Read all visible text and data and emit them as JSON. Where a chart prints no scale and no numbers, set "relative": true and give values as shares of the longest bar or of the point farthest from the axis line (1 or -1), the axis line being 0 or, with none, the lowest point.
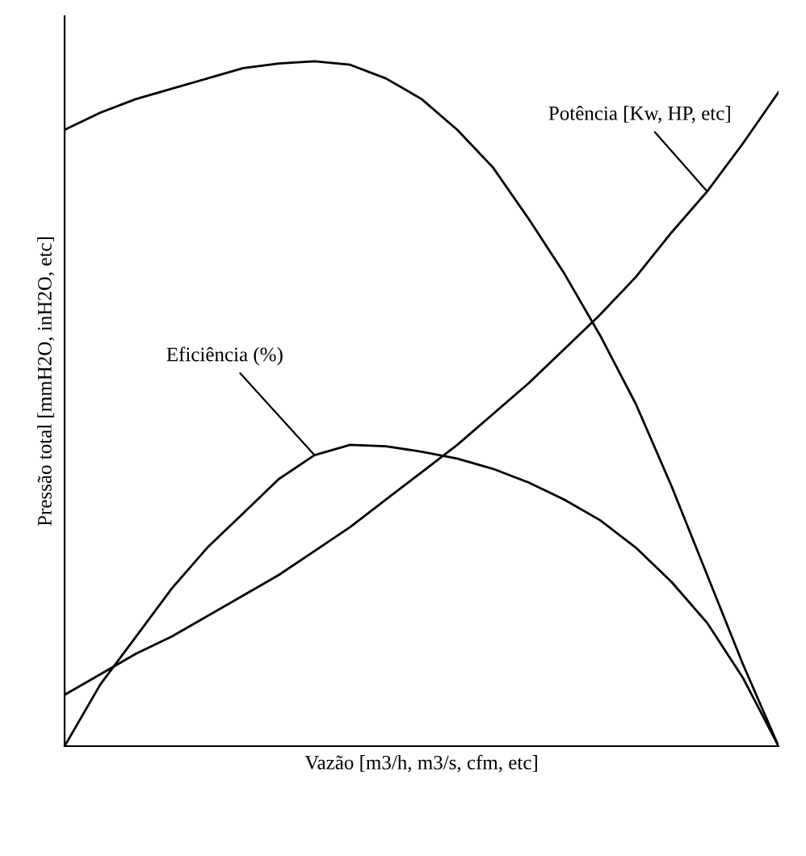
{
  "chart_data": {
    "type": "line",
    "relative": true,
    "xlabel": "Vazão [m3/h, m3/s, cfm, etc]",
    "ylabel": "Pressão total [mmH2O, inH2O, etc]",
    "categories": [
      null,
      null,
      null,
      null,
      null,
      null,
      null,
      null,
      null,
      null,
      null,
      null,
      null,
      null,
      null,
      null,
      null,
      null,
      null,
      null,
      null
    ],
    "series": [
      {
        "color": "#000000",
        "values": [
          0.9,
          0.925,
          0.945,
          0.96,
          0.975,
          0.99,
          0.997,
          1.0,
          0.995,
          0.975,
          0.945,
          0.9,
          0.845,
          0.77,
          0.69,
          0.6,
          0.5,
          0.38,
          0.25,
          0.12,
          0
        ]
      },
      {
        "name": "Potência [Kw, HP, etc]",
        "color": "#000000",
        "values": [
          0.075,
          0.105,
          0.135,
          0.16,
          0.19,
          0.22,
          0.25,
          0.285,
          0.32,
          0.36,
          0.4,
          0.44,
          0.485,
          0.53,
          0.58,
          0.63,
          0.685,
          0.75,
          0.81,
          0.88,
          0.955
        ]
      },
      {
        "name": "Eficiência (%)",
        "color": "#000000",
        "values": [
          0,
          0.09,
          0.16,
          0.23,
          0.29,
          0.34,
          0.39,
          0.425,
          0.44,
          0.438,
          0.43,
          0.42,
          0.405,
          0.385,
          0.36,
          0.33,
          0.29,
          0.24,
          0.18,
          0.1,
          0
        ]
      }
    ]
  }
}
